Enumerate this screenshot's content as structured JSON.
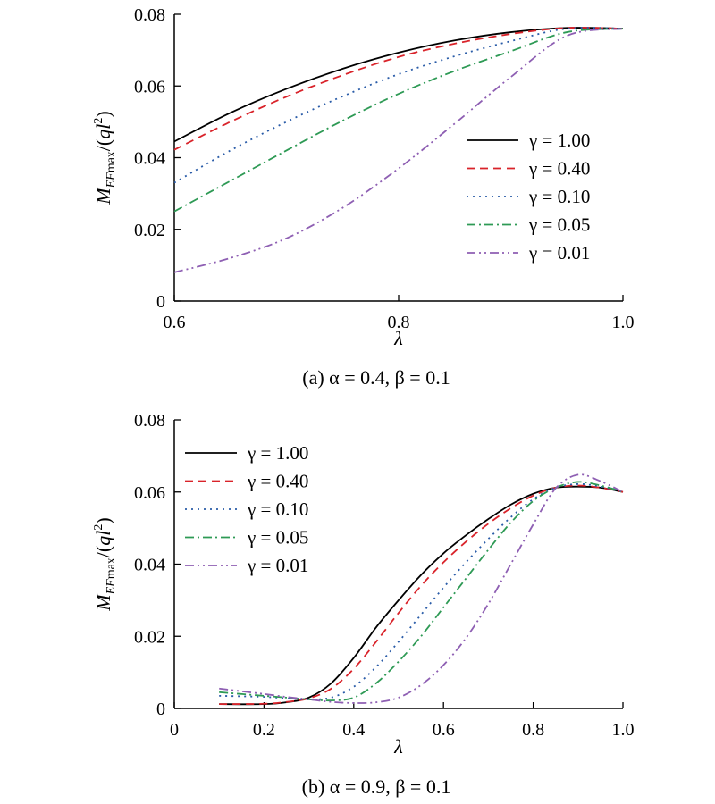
{
  "chart_data": [
    {
      "type": "line",
      "caption": "(a) α = 0.4, β = 0.1",
      "xlabel": "λ",
      "ylabel": "M_EFmax/(ql²)",
      "xlim": [
        0.6,
        1.0
      ],
      "ylim": [
        0,
        0.08
      ],
      "xticks": [
        "0.6",
        "0.8",
        "1.0"
      ],
      "yticks": [
        "0",
        "0.02",
        "0.04",
        "0.06",
        "0.08"
      ],
      "legend_position": "right",
      "series": [
        {
          "name": "γ = 1.00",
          "color": "#000000",
          "dash": "solid",
          "x": [
            0.6,
            0.65,
            0.7,
            0.75,
            0.8,
            0.85,
            0.9,
            0.95,
            1.0
          ],
          "y": [
            0.0445,
            0.0525,
            0.0592,
            0.0648,
            0.0693,
            0.0727,
            0.075,
            0.0762,
            0.076
          ]
        },
        {
          "name": "γ = 0.40",
          "color": "#d9232a",
          "dash": "dashed",
          "x": [
            0.6,
            0.65,
            0.7,
            0.75,
            0.8,
            0.85,
            0.9,
            0.95,
            1.0
          ],
          "y": [
            0.0422,
            0.05,
            0.057,
            0.063,
            0.0681,
            0.0718,
            0.0745,
            0.0762,
            0.076
          ]
        },
        {
          "name": "γ = 0.10",
          "color": "#2a5ca8",
          "dash": "dotted",
          "x": [
            0.6,
            0.65,
            0.7,
            0.75,
            0.8,
            0.85,
            0.9,
            0.95,
            1.0
          ],
          "y": [
            0.033,
            0.042,
            0.05,
            0.0571,
            0.0633,
            0.0683,
            0.0725,
            0.076,
            0.076
          ]
        },
        {
          "name": "γ = 0.05",
          "color": "#2e9a55",
          "dash": "dashdot",
          "x": [
            0.6,
            0.65,
            0.7,
            0.75,
            0.8,
            0.85,
            0.9,
            0.95,
            1.0
          ],
          "y": [
            0.025,
            0.0335,
            0.042,
            0.0503,
            0.0578,
            0.0642,
            0.0697,
            0.075,
            0.076
          ]
        },
        {
          "name": "γ = 0.01",
          "color": "#8e5fb3",
          "dash": "dashdotdot",
          "x": [
            0.6,
            0.65,
            0.7,
            0.75,
            0.8,
            0.85,
            0.9,
            0.95,
            1.0
          ],
          "y": [
            0.008,
            0.012,
            0.0175,
            0.026,
            0.037,
            0.0495,
            0.0625,
            0.074,
            0.076
          ]
        }
      ]
    },
    {
      "type": "line",
      "caption": "(b) α = 0.9, β = 0.1",
      "xlabel": "λ",
      "ylabel": "M_EFmax/(ql²)",
      "xlim": [
        0,
        1.0
      ],
      "ylim": [
        0,
        0.08
      ],
      "xticks": [
        "0",
        "0.2",
        "0.4",
        "0.6",
        "0.8",
        "1.0"
      ],
      "yticks": [
        "0",
        "0.02",
        "0.04",
        "0.06",
        "0.08"
      ],
      "legend_position": "top-left",
      "series": [
        {
          "name": "γ = 1.00",
          "color": "#000000",
          "dash": "solid",
          "x": [
            0.1,
            0.2,
            0.25,
            0.3,
            0.35,
            0.4,
            0.45,
            0.5,
            0.55,
            0.6,
            0.65,
            0.7,
            0.75,
            0.8,
            0.85,
            0.9,
            0.95,
            1.0
          ],
          "y": [
            0.0012,
            0.0012,
            0.0017,
            0.003,
            0.007,
            0.014,
            0.0225,
            0.03,
            0.037,
            0.043,
            0.048,
            0.0525,
            0.0565,
            0.0595,
            0.0612,
            0.0615,
            0.0612,
            0.06
          ]
        },
        {
          "name": "γ = 0.40",
          "color": "#d9232a",
          "dash": "dashed",
          "x": [
            0.1,
            0.2,
            0.25,
            0.3,
            0.35,
            0.4,
            0.45,
            0.5,
            0.55,
            0.6,
            0.65,
            0.7,
            0.75,
            0.8,
            0.85,
            0.9,
            0.95,
            1.0
          ],
          "y": [
            0.0012,
            0.0013,
            0.0018,
            0.0028,
            0.0055,
            0.011,
            0.0185,
            0.0265,
            0.034,
            0.0405,
            0.0462,
            0.0512,
            0.0555,
            0.059,
            0.0612,
            0.0618,
            0.0612,
            0.06
          ]
        },
        {
          "name": "γ = 0.10",
          "color": "#2a5ca8",
          "dash": "dotted",
          "x": [
            0.1,
            0.2,
            0.25,
            0.3,
            0.35,
            0.4,
            0.45,
            0.5,
            0.55,
            0.6,
            0.65,
            0.7,
            0.75,
            0.8,
            0.85,
            0.9,
            0.95,
            1.0
          ],
          "y": [
            0.0035,
            0.0032,
            0.0028,
            0.0025,
            0.003,
            0.006,
            0.0115,
            0.0185,
            0.026,
            0.0335,
            0.0405,
            0.047,
            0.053,
            0.058,
            0.0612,
            0.0622,
            0.0615,
            0.06
          ]
        },
        {
          "name": "γ = 0.05",
          "color": "#2e9a55",
          "dash": "dashdot",
          "x": [
            0.1,
            0.2,
            0.25,
            0.3,
            0.35,
            0.4,
            0.45,
            0.5,
            0.55,
            0.6,
            0.65,
            0.7,
            0.75,
            0.8,
            0.85,
            0.9,
            0.95,
            1.0
          ],
          "y": [
            0.0045,
            0.0035,
            0.003,
            0.0025,
            0.0022,
            0.003,
            0.007,
            0.013,
            0.02,
            0.028,
            0.036,
            0.044,
            0.0515,
            0.0575,
            0.0612,
            0.0628,
            0.0618,
            0.06
          ]
        },
        {
          "name": "γ = 0.01",
          "color": "#8e5fb3",
          "dash": "dashdotdot",
          "x": [
            0.1,
            0.2,
            0.25,
            0.3,
            0.35,
            0.4,
            0.45,
            0.5,
            0.55,
            0.6,
            0.65,
            0.7,
            0.75,
            0.8,
            0.85,
            0.9,
            0.95,
            1.0
          ],
          "y": [
            0.0055,
            0.004,
            0.0032,
            0.0025,
            0.0018,
            0.0015,
            0.0017,
            0.003,
            0.0065,
            0.012,
            0.0195,
            0.029,
            0.04,
            0.051,
            0.061,
            0.0648,
            0.063,
            0.06
          ]
        }
      ]
    }
  ]
}
